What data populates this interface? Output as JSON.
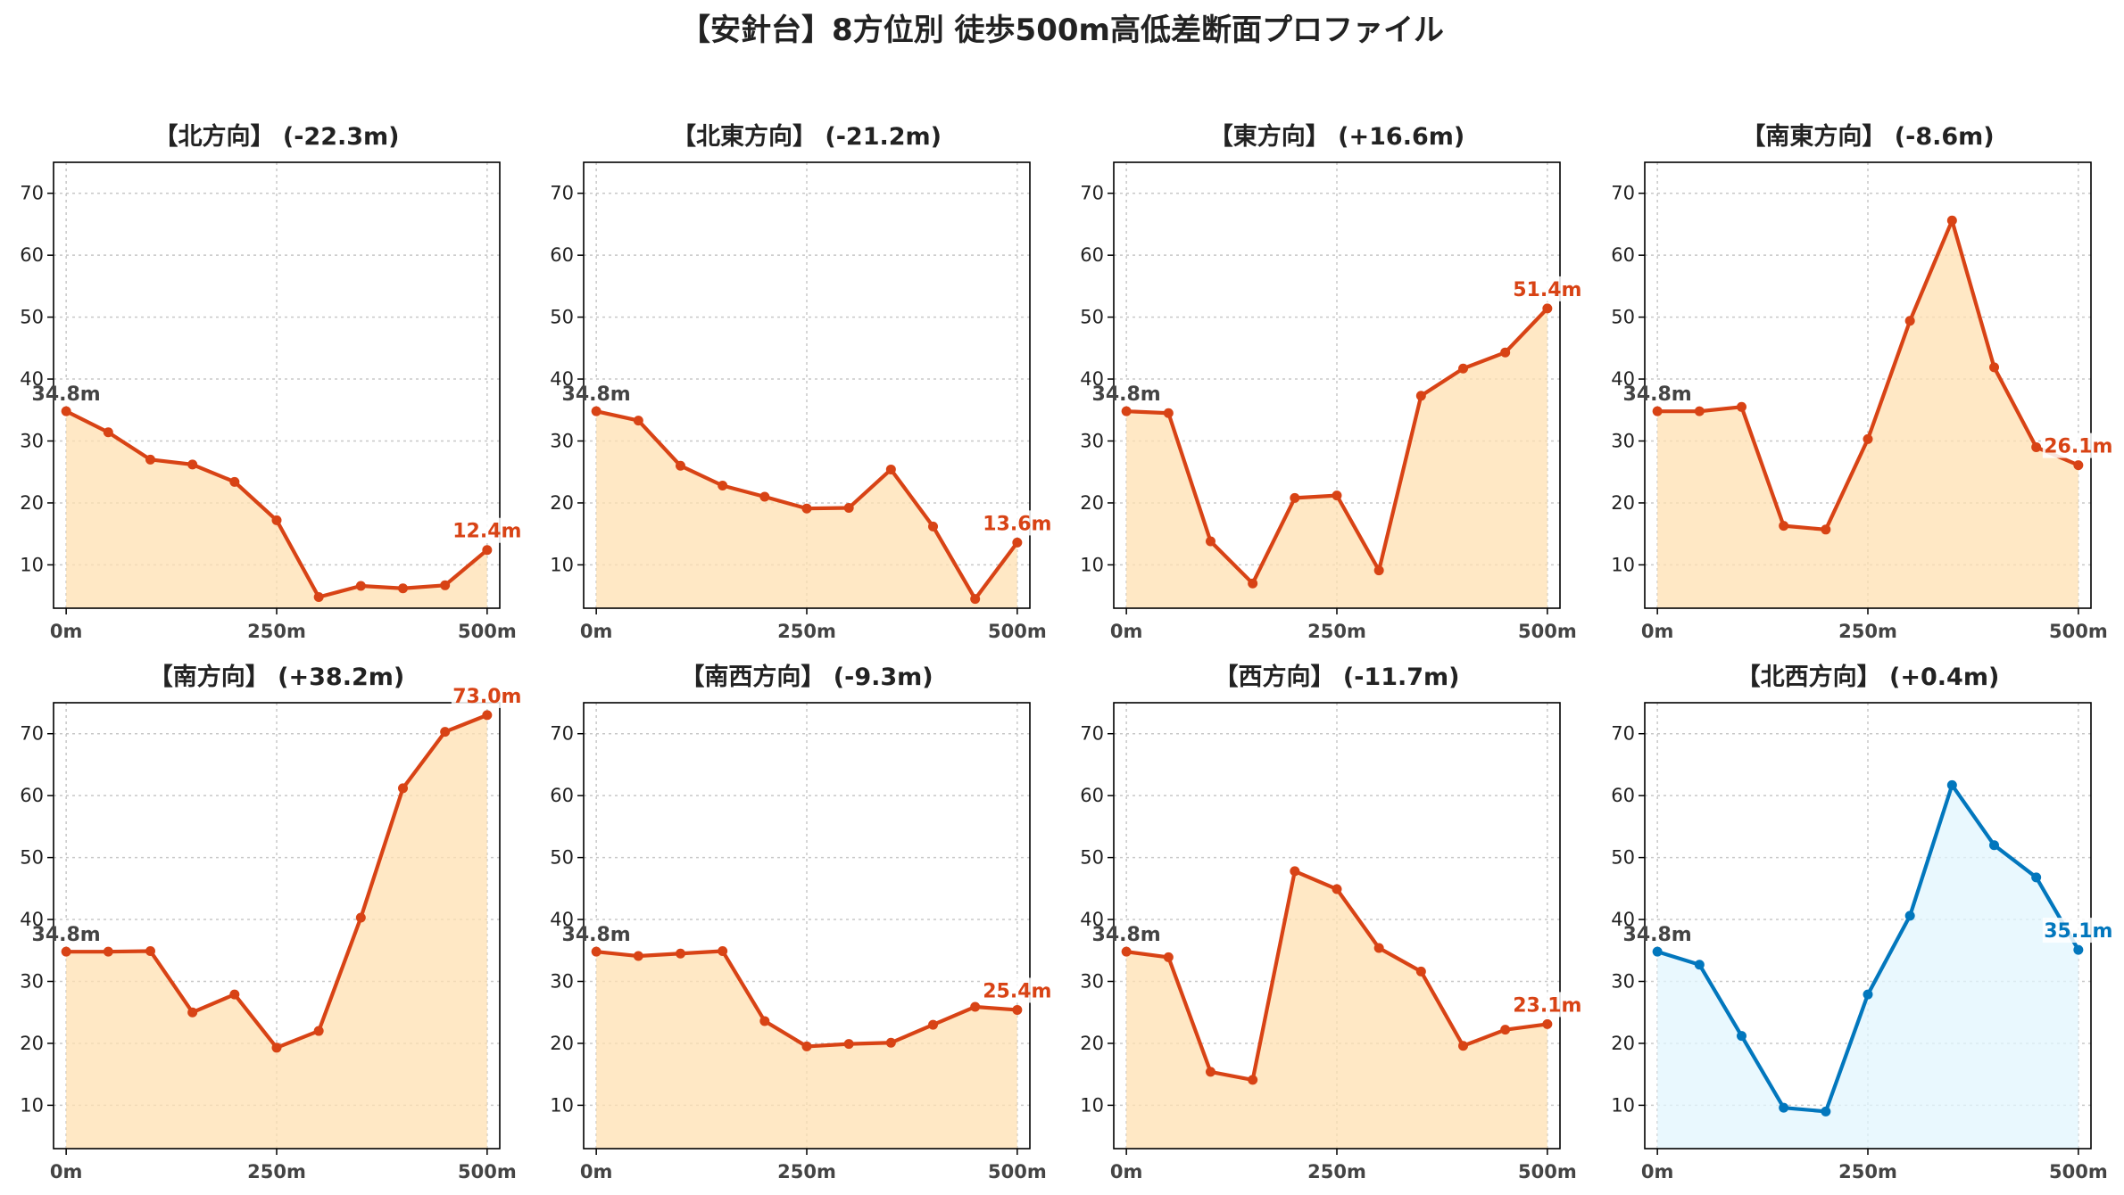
{
  "chart_data": {
    "type": "line",
    "title": "【安針台】8方位別 徒歩500m高低差断面プロファイル",
    "colors": {
      "down": "#d84315",
      "down_fill": "#ffe0b2",
      "up": "#0277bd",
      "up_fill": "#e1f5fe",
      "start_label": "#444444"
    },
    "x": [
      0,
      50,
      100,
      150,
      200,
      250,
      300,
      350,
      400,
      450,
      500
    ],
    "x_ticks": [
      0,
      250,
      500
    ],
    "x_tick_labels": [
      "0m",
      "250m",
      "500m"
    ],
    "y_ticks": [
      10,
      20,
      30,
      40,
      50,
      60,
      70
    ],
    "xlim": [
      -15,
      515
    ],
    "ylim": [
      3,
      75
    ],
    "grid": true,
    "panels": [
      {
        "title": "【北方向】 (-22.3m)",
        "color_key": "down",
        "start_label": "34.8m",
        "end_label": "12.4m",
        "values": [
          34.8,
          31.4,
          27.0,
          26.2,
          23.4,
          17.2,
          4.8,
          6.6,
          6.2,
          6.7,
          12.4
        ]
      },
      {
        "title": "【北東方向】 (-21.2m)",
        "color_key": "down",
        "start_label": "34.8m",
        "end_label": "13.6m",
        "values": [
          34.8,
          33.3,
          26.0,
          22.8,
          21.0,
          19.1,
          19.2,
          25.4,
          16.2,
          4.5,
          13.6
        ]
      },
      {
        "title": "【東方向】 (+16.6m)",
        "color_key": "down",
        "start_label": "34.8m",
        "end_label": "51.4m",
        "values": [
          34.8,
          34.5,
          13.8,
          7.0,
          20.8,
          21.2,
          9.1,
          37.3,
          41.7,
          44.3,
          51.4
        ]
      },
      {
        "title": "【南東方向】 (-8.6m)",
        "color_key": "down",
        "start_label": "34.8m",
        "end_label": "26.1m",
        "values": [
          34.8,
          34.8,
          35.5,
          16.3,
          15.7,
          30.3,
          49.4,
          65.6,
          41.9,
          29.0,
          26.1
        ]
      },
      {
        "title": "【南方向】 (+38.2m)",
        "color_key": "down",
        "start_label": "34.8m",
        "end_label": "73.0m",
        "values": [
          34.8,
          34.8,
          34.9,
          25.0,
          27.9,
          19.3,
          22.0,
          40.3,
          61.2,
          70.3,
          73.0
        ]
      },
      {
        "title": "【南西方向】 (-9.3m)",
        "color_key": "down",
        "start_label": "34.8m",
        "end_label": "25.4m",
        "values": [
          34.8,
          34.1,
          34.5,
          34.9,
          23.6,
          19.5,
          19.9,
          20.1,
          23.0,
          25.9,
          25.4
        ]
      },
      {
        "title": "【西方向】 (-11.7m)",
        "color_key": "down",
        "start_label": "34.8m",
        "end_label": "23.1m",
        "values": [
          34.8,
          33.9,
          15.4,
          14.1,
          47.8,
          44.9,
          35.4,
          31.6,
          19.6,
          22.2,
          23.1
        ]
      },
      {
        "title": "【北西方向】 (+0.4m)",
        "color_key": "up",
        "start_label": "34.8m",
        "end_label": "35.1m",
        "values": [
          34.8,
          32.7,
          21.2,
          9.6,
          9.0,
          27.9,
          40.6,
          61.7,
          52.0,
          46.8,
          35.1
        ]
      }
    ]
  }
}
